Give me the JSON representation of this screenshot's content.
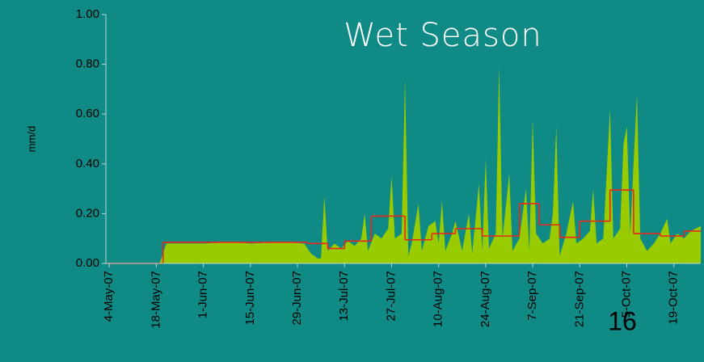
{
  "chart_data": {
    "type": "area",
    "title": "Wet Season",
    "y_label": "mm/d",
    "page_number": "16",
    "xlim": [
      "2007-05-03",
      "2007-10-27"
    ],
    "ylim": [
      0,
      1
    ],
    "yticks": [
      {
        "value": 0,
        "label": "0.00"
      },
      {
        "value": 0.2,
        "label": "0.20"
      },
      {
        "value": 0.4,
        "label": "0.40"
      },
      {
        "value": 0.6,
        "label": "0.60"
      },
      {
        "value": 0.8,
        "label": "0.80"
      },
      {
        "value": 1,
        "label": "1.00"
      }
    ],
    "xticks": [
      {
        "value": "2007-05-04",
        "label": "4-May-07"
      },
      {
        "value": "2007-05-18",
        "label": "18-May-07"
      },
      {
        "value": "2007-06-01",
        "label": "1-Jun-07"
      },
      {
        "value": "2007-06-15",
        "label": "15-Jun-07"
      },
      {
        "value": "2007-06-29",
        "label": "29-Jun-07"
      },
      {
        "value": "2007-07-13",
        "label": "13-Jul-07"
      },
      {
        "value": "2007-07-27",
        "label": "27-Jul-07"
      },
      {
        "value": "2007-08-10",
        "label": "10-Aug-07"
      },
      {
        "value": "2007-08-24",
        "label": "24-Aug-07"
      },
      {
        "value": "2007-09-07",
        "label": "7-Sep-07"
      },
      {
        "value": "2007-09-21",
        "label": "21-Sep-07"
      },
      {
        "value": "2007-10-05",
        "label": "5-Oct-07"
      },
      {
        "value": "2007-10-19",
        "label": "19-Oct-07"
      }
    ],
    "series": [
      {
        "kind": "area",
        "color": "#99cc00",
        "x": [
          "2007-05-03",
          "2007-05-19",
          "2007-05-21",
          "2007-06-01",
          "2007-06-10",
          "2007-06-15",
          "2007-06-25",
          "2007-07-01",
          "2007-07-03",
          "2007-07-05",
          "2007-07-06",
          "2007-07-07",
          "2007-07-08",
          "2007-07-10",
          "2007-07-12",
          "2007-07-14",
          "2007-07-16",
          "2007-07-18",
          "2007-07-19",
          "2007-07-20",
          "2007-07-22",
          "2007-07-24",
          "2007-07-26",
          "2007-07-27",
          "2007-07-28",
          "2007-07-30",
          "2007-07-31",
          "2007-08-01",
          "2007-08-02",
          "2007-08-04",
          "2007-08-05",
          "2007-08-07",
          "2007-08-09",
          "2007-08-10",
          "2007-08-11",
          "2007-08-12",
          "2007-08-14",
          "2007-08-15",
          "2007-08-17",
          "2007-08-19",
          "2007-08-20",
          "2007-08-22",
          "2007-08-23",
          "2007-08-24",
          "2007-08-25",
          "2007-08-27",
          "2007-08-28",
          "2007-08-29",
          "2007-08-31",
          "2007-09-01",
          "2007-09-03",
          "2007-09-05",
          "2007-09-06",
          "2007-09-07",
          "2007-09-08",
          "2007-09-10",
          "2007-09-12",
          "2007-09-13",
          "2007-09-14",
          "2007-09-15",
          "2007-09-17",
          "2007-09-19",
          "2007-09-20",
          "2007-09-22",
          "2007-09-24",
          "2007-09-25",
          "2007-09-26",
          "2007-09-28",
          "2007-09-30",
          "2007-10-01",
          "2007-10-03",
          "2007-10-04",
          "2007-10-05",
          "2007-10-06",
          "2007-10-08",
          "2007-10-09",
          "2007-10-11",
          "2007-10-13",
          "2007-10-15",
          "2007-10-17",
          "2007-10-18",
          "2007-10-20",
          "2007-10-22",
          "2007-10-24",
          "2007-10-27"
        ],
        "values": [
          0,
          0,
          0.08,
          0.08,
          0.085,
          0.08,
          0.085,
          0.08,
          0.04,
          0.02,
          0.02,
          0.27,
          0.05,
          0.08,
          0.06,
          0.09,
          0.07,
          0.1,
          0.2,
          0.05,
          0.12,
          0.1,
          0.14,
          0.35,
          0.1,
          0.12,
          0.74,
          0.03,
          0.08,
          0.24,
          0.05,
          0.15,
          0.17,
          0.08,
          0.25,
          0.05,
          0.12,
          0.17,
          0.05,
          0.2,
          0.04,
          0.32,
          0.05,
          0.42,
          0.06,
          0.12,
          0.79,
          0.1,
          0.36,
          0.05,
          0.1,
          0.3,
          0.05,
          0.58,
          0.12,
          0.08,
          0.1,
          0.2,
          0.55,
          0.03,
          0.12,
          0.25,
          0.08,
          0.1,
          0.13,
          0.3,
          0.08,
          0.1,
          0.62,
          0.1,
          0.14,
          0.48,
          0.55,
          0.12,
          0.68,
          0.1,
          0.05,
          0.08,
          0.12,
          0.18,
          0.08,
          0.12,
          0.1,
          0.13,
          0.15
        ]
      },
      {
        "kind": "step",
        "color": "#e8261c",
        "x": [
          "2007-05-03",
          "2007-05-20",
          "2007-07-02",
          "2007-07-08",
          "2007-07-13",
          "2007-07-21",
          "2007-07-31",
          "2007-08-08",
          "2007-08-15",
          "2007-08-23",
          "2007-09-03",
          "2007-09-09",
          "2007-09-15",
          "2007-09-21",
          "2007-09-30",
          "2007-10-07",
          "2007-10-15",
          "2007-10-22",
          "2007-10-27"
        ],
        "values": [
          0,
          0.085,
          0.08,
          0.06,
          0.09,
          0.19,
          0.095,
          0.12,
          0.14,
          0.11,
          0.24,
          0.155,
          0.105,
          0.17,
          0.295,
          0.12,
          0.11,
          0.13,
          0.13
        ]
      }
    ]
  }
}
